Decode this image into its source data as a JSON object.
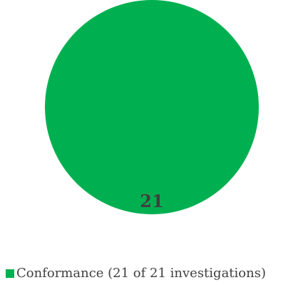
{
  "chart_data": {
    "type": "pie",
    "slices": [
      {
        "label": "Conformance (21 of 21 investigations)",
        "value": 21,
        "data_label": "21",
        "color": "#00b050"
      }
    ],
    "legend": {
      "position": "bottom-left",
      "items": [
        {
          "label": "Conformance (21 of 21 investigations)",
          "color": "#00b050"
        }
      ]
    },
    "data_label_color": "#404040"
  }
}
